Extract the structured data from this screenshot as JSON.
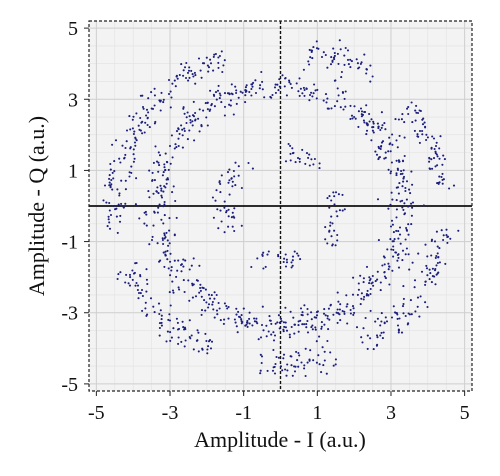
{
  "chart_data": {
    "type": "scatter",
    "title": "",
    "xlabel": "Amplitude - I (a.u.)",
    "ylabel": "Amplitude - Q (a.u.)",
    "xlim": [
      -5.2,
      5.2
    ],
    "ylim": [
      -5.2,
      5.2
    ],
    "xticks": [
      -5,
      -3,
      -1,
      1,
      3,
      5
    ],
    "yticks": [
      5,
      3,
      1,
      -1,
      -3,
      -5
    ],
    "xtick_labels": [
      "-5",
      "-3",
      "-1",
      "1",
      "3",
      "5"
    ],
    "ytick_labels": [
      "5",
      "3",
      "1",
      "-1",
      "-3",
      "-5"
    ],
    "grid": true,
    "colors": {
      "points": "#1b1f7a",
      "plot_background": "#f3f3f3",
      "grid_major": "#cfcfcf",
      "grid_minor": "#e2e2e2",
      "zero_axes": "#111111"
    },
    "series": [
      {
        "ring": "inner",
        "radius": 1.55,
        "spread": 0.16,
        "density": 0.35,
        "arcs": [
          [
            -10,
            15
          ],
          [
            45,
            85
          ],
          [
            125,
            210
          ],
          [
            245,
            290
          ],
          [
            320,
            350
          ]
        ]
      },
      {
        "ring": "middle",
        "radius": 3.35,
        "spread": 0.2,
        "density": 0.55,
        "arcs": [
          [
            0,
            360
          ]
        ]
      },
      {
        "ring": "outer",
        "radius": 4.45,
        "spread": 0.2,
        "density": 0.45,
        "arcs": [
          [
            5,
            40
          ],
          [
            55,
            80
          ],
          [
            110,
            190
          ],
          [
            200,
            245
          ],
          [
            262,
            290
          ],
          [
            300,
            352
          ]
        ]
      }
    ]
  }
}
